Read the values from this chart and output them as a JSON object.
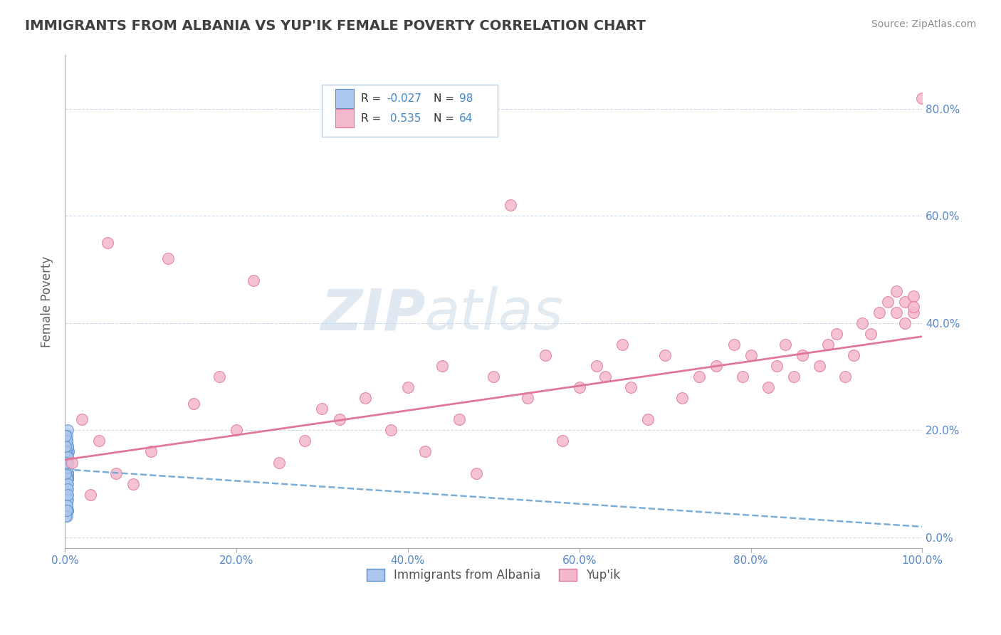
{
  "title": "IMMIGRANTS FROM ALBANIA VS YUP'IK FEMALE POVERTY CORRELATION CHART",
  "source": "Source: ZipAtlas.com",
  "ylabel": "Female Poverty",
  "xlim": [
    0,
    1.0
  ],
  "ylim": [
    -0.02,
    0.9
  ],
  "xticks": [
    0.0,
    0.2,
    0.4,
    0.6,
    0.8,
    1.0
  ],
  "xtick_labels": [
    "0.0%",
    "20.0%",
    "40.0%",
    "60.0%",
    "80.0%",
    "100.0%"
  ],
  "ytick_labels_right": [
    "0.0%",
    "20.0%",
    "40.0%",
    "60.0%",
    "80.0%"
  ],
  "yticks_right": [
    0.0,
    0.2,
    0.4,
    0.6,
    0.8
  ],
  "albania_color": "#adc8ee",
  "albania_edge": "#5a8fc8",
  "yupik_color": "#f4b8ce",
  "yupik_edge": "#e07898",
  "trend_albania_color": "#7aaed8",
  "trend_yupik_color": "#e07898",
  "background_color": "#ffffff",
  "grid_color": "#c8d8ea",
  "title_color": "#404040",
  "albania_x": [
    0.002,
    0.003,
    0.001,
    0.004,
    0.002,
    0.001,
    0.003,
    0.002,
    0.001,
    0.002,
    0.003,
    0.001,
    0.002,
    0.001,
    0.003,
    0.002,
    0.001,
    0.004,
    0.002,
    0.001,
    0.002,
    0.003,
    0.001,
    0.002,
    0.003,
    0.001,
    0.002,
    0.001,
    0.003,
    0.002,
    0.001,
    0.002,
    0.003,
    0.001,
    0.002,
    0.001,
    0.003,
    0.002,
    0.001,
    0.002,
    0.003,
    0.001,
    0.002,
    0.003,
    0.001,
    0.002,
    0.001,
    0.003,
    0.002,
    0.001,
    0.002,
    0.003,
    0.001,
    0.002,
    0.003,
    0.001,
    0.002,
    0.001,
    0.003,
    0.002,
    0.001,
    0.002,
    0.003,
    0.001,
    0.002,
    0.001,
    0.003,
    0.002,
    0.001,
    0.002,
    0.003,
    0.001,
    0.002,
    0.003,
    0.001,
    0.002,
    0.001,
    0.003,
    0.002,
    0.001,
    0.002,
    0.003,
    0.001,
    0.002,
    0.003,
    0.001,
    0.002,
    0.001,
    0.003,
    0.002,
    0.001,
    0.002,
    0.003,
    0.001,
    0.002,
    0.003,
    0.001,
    0.002
  ],
  "albania_y": [
    0.18,
    0.14,
    0.12,
    0.16,
    0.1,
    0.08,
    0.2,
    0.15,
    0.09,
    0.13,
    0.11,
    0.17,
    0.07,
    0.19,
    0.12,
    0.14,
    0.1,
    0.16,
    0.08,
    0.13,
    0.18,
    0.11,
    0.15,
    0.09,
    0.12,
    0.16,
    0.14,
    0.1,
    0.17,
    0.08,
    0.13,
    0.19,
    0.11,
    0.15,
    0.12,
    0.09,
    0.14,
    0.1,
    0.17,
    0.08,
    0.12,
    0.16,
    0.13,
    0.11,
    0.18,
    0.09,
    0.15,
    0.14,
    0.1,
    0.07,
    0.16,
    0.12,
    0.13,
    0.09,
    0.17,
    0.11,
    0.14,
    0.08,
    0.15,
    0.1,
    0.13,
    0.18,
    0.11,
    0.16,
    0.09,
    0.12,
    0.14,
    0.1,
    0.17,
    0.08,
    0.13,
    0.19,
    0.11,
    0.15,
    0.12,
    0.09,
    0.14,
    0.1,
    0.07,
    0.08,
    0.06,
    0.05,
    0.07,
    0.06,
    0.05,
    0.08,
    0.07,
    0.06,
    0.09,
    0.05,
    0.06,
    0.04,
    0.07,
    0.05,
    0.06,
    0.08,
    0.04,
    0.05
  ],
  "yupik_x": [
    0.008,
    0.02,
    0.03,
    0.04,
    0.05,
    0.06,
    0.08,
    0.1,
    0.12,
    0.15,
    0.18,
    0.2,
    0.22,
    0.25,
    0.28,
    0.3,
    0.32,
    0.35,
    0.38,
    0.4,
    0.42,
    0.44,
    0.46,
    0.48,
    0.5,
    0.52,
    0.54,
    0.56,
    0.58,
    0.6,
    0.62,
    0.63,
    0.65,
    0.66,
    0.68,
    0.7,
    0.72,
    0.74,
    0.76,
    0.78,
    0.79,
    0.8,
    0.82,
    0.83,
    0.84,
    0.85,
    0.86,
    0.88,
    0.89,
    0.9,
    0.91,
    0.92,
    0.93,
    0.94,
    0.95,
    0.96,
    0.97,
    0.97,
    0.98,
    0.98,
    0.99,
    0.99,
    0.99,
    1.0
  ],
  "yupik_y": [
    0.14,
    0.22,
    0.08,
    0.18,
    0.55,
    0.12,
    0.1,
    0.16,
    0.52,
    0.25,
    0.3,
    0.2,
    0.48,
    0.14,
    0.18,
    0.24,
    0.22,
    0.26,
    0.2,
    0.28,
    0.16,
    0.32,
    0.22,
    0.12,
    0.3,
    0.62,
    0.26,
    0.34,
    0.18,
    0.28,
    0.32,
    0.3,
    0.36,
    0.28,
    0.22,
    0.34,
    0.26,
    0.3,
    0.32,
    0.36,
    0.3,
    0.34,
    0.28,
    0.32,
    0.36,
    0.3,
    0.34,
    0.32,
    0.36,
    0.38,
    0.3,
    0.34,
    0.4,
    0.38,
    0.42,
    0.44,
    0.42,
    0.46,
    0.4,
    0.44,
    0.42,
    0.45,
    0.43,
    0.82
  ],
  "albania_trend_x": [
    0.0,
    1.0
  ],
  "albania_trend_y": [
    0.127,
    0.02
  ],
  "yupik_trend_x": [
    0.0,
    1.0
  ],
  "yupik_trend_y": [
    0.145,
    0.375
  ]
}
